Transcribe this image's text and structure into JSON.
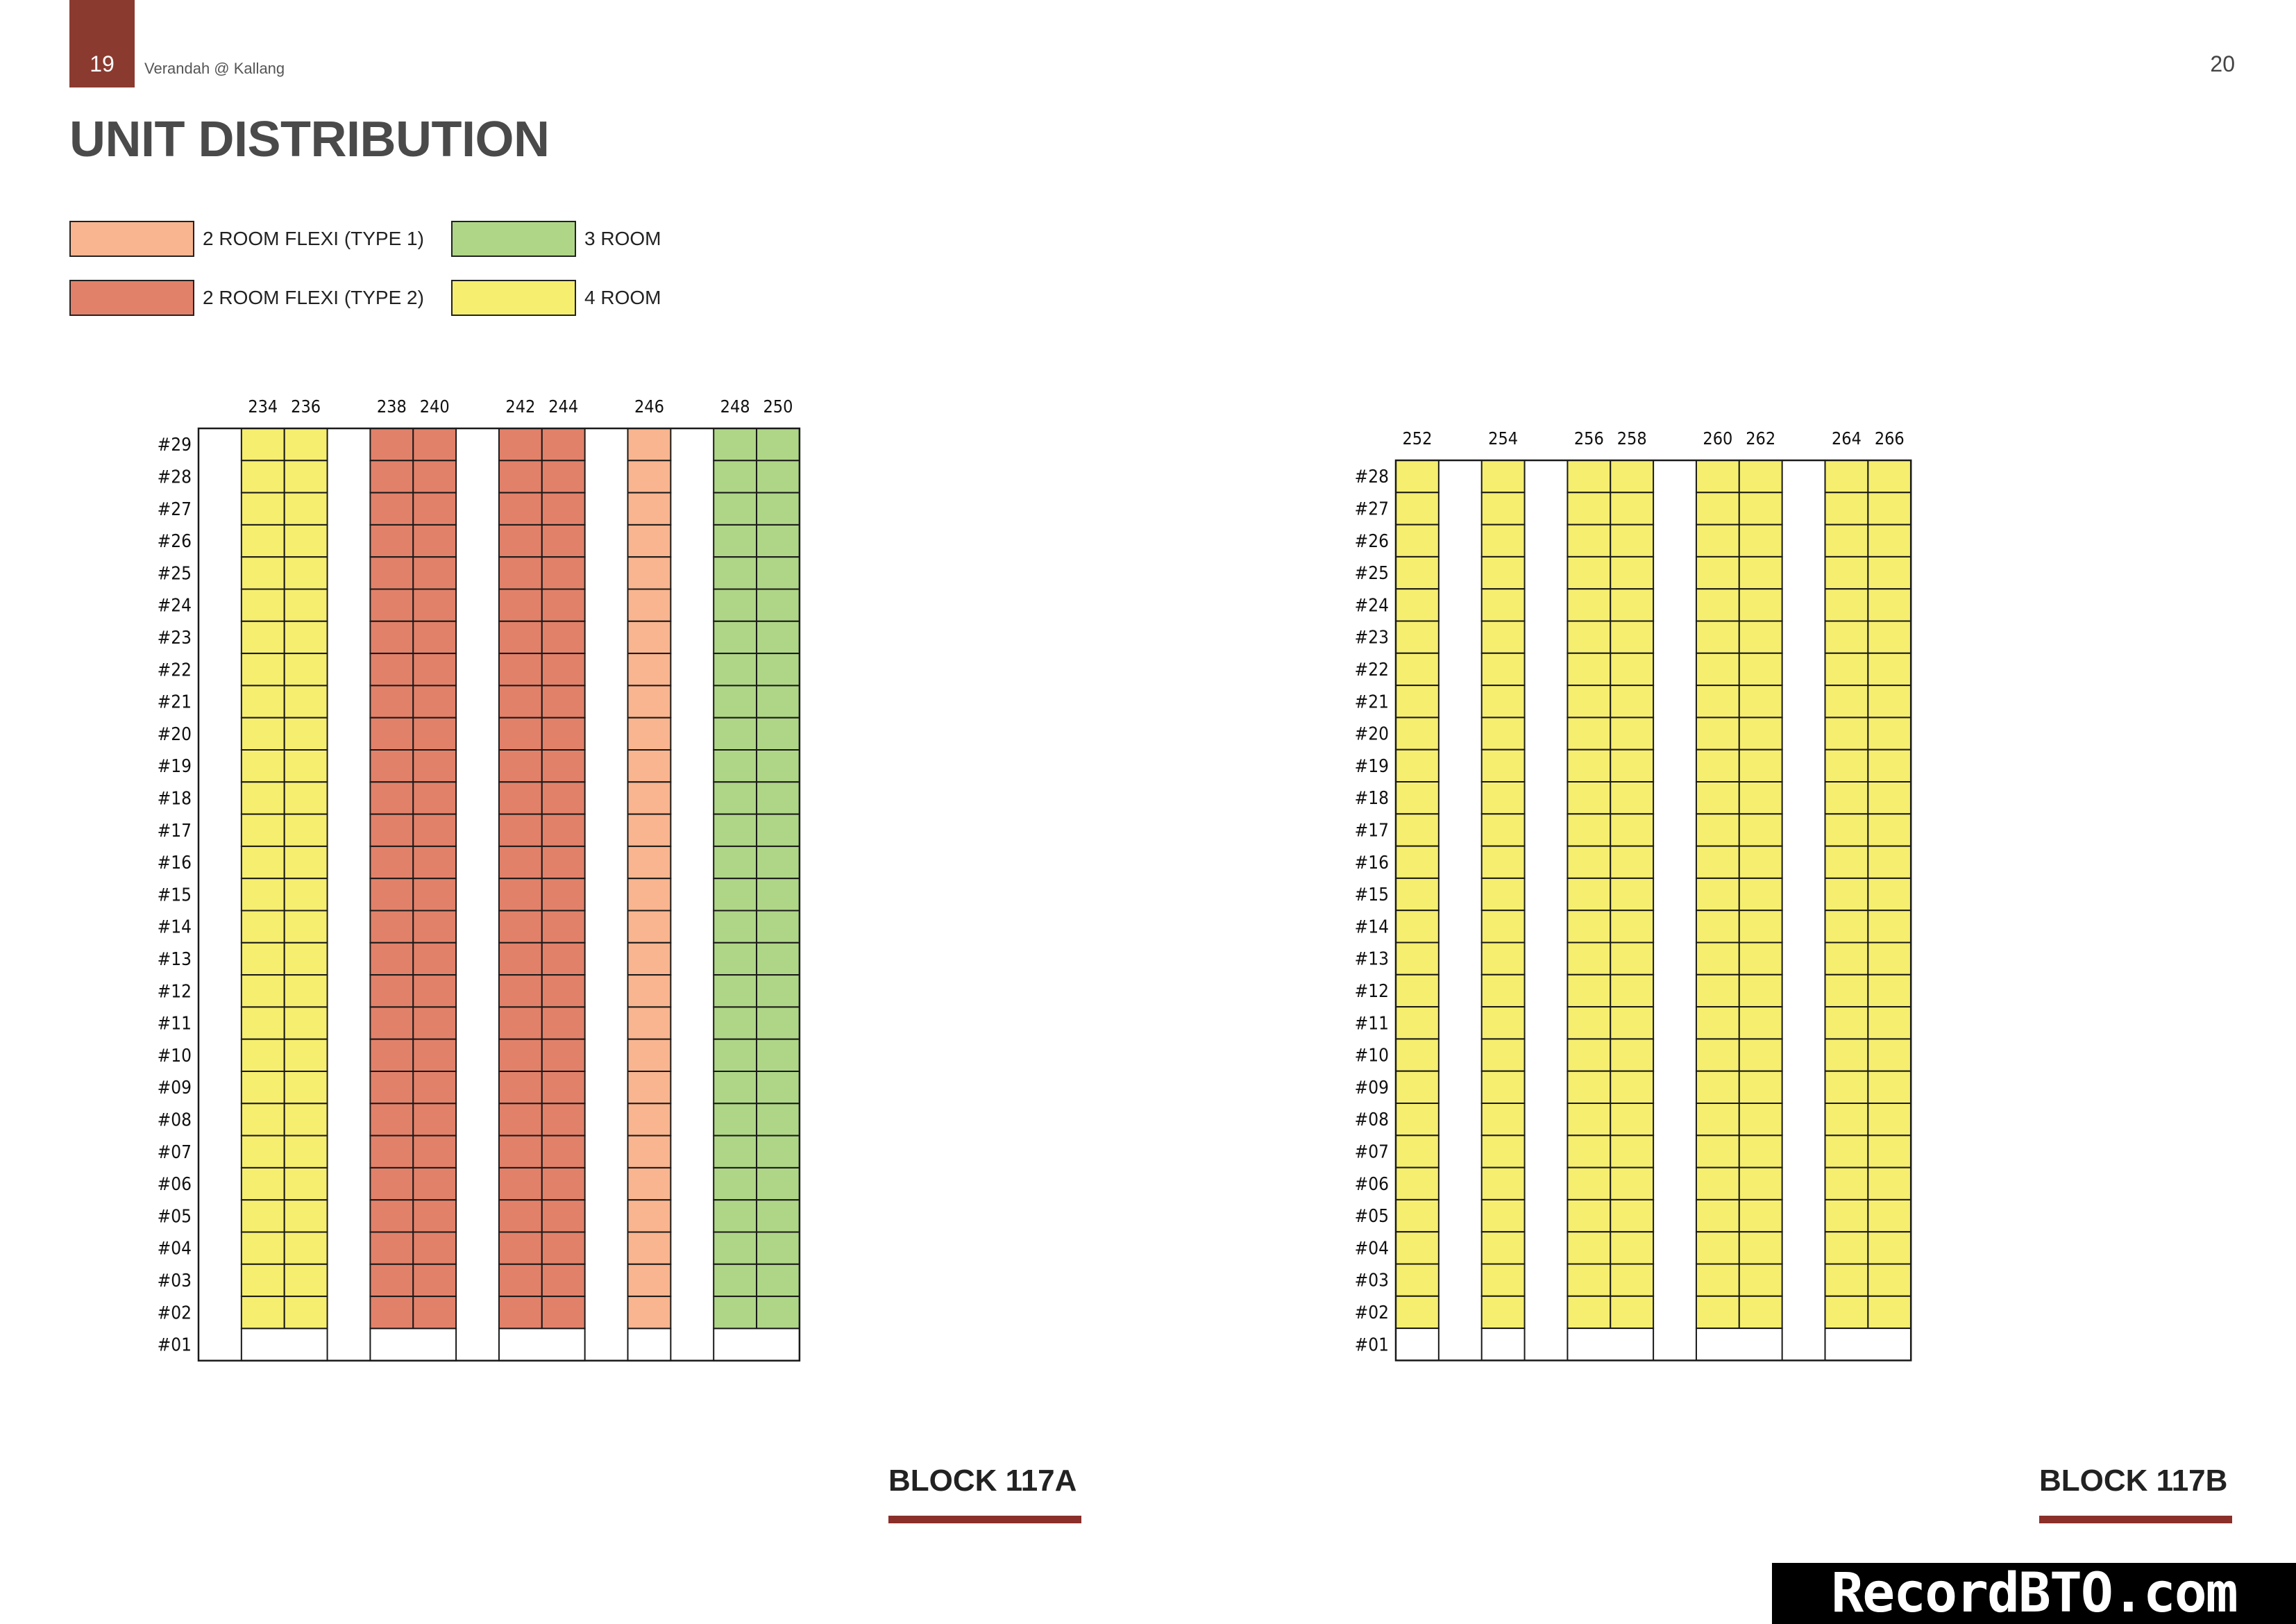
{
  "header": {
    "page_left": "19",
    "doc_title": "Verandah @ Kallang",
    "page_right": "20"
  },
  "heading": "UNIT DISTRIBUTION",
  "legend": [
    {
      "key": "flexi1",
      "label": "2 ROOM FLEXI (TYPE 1)",
      "color": "#F9B58F"
    },
    {
      "key": "room3",
      "label": "3 ROOM",
      "color": "#AFD687"
    },
    {
      "key": "flexi2",
      "label": "2 ROOM FLEXI (TYPE 2)",
      "color": "#E2816A"
    },
    {
      "key": "room4",
      "label": "4 ROOM",
      "color": "#F6EE6F"
    }
  ],
  "blocks": [
    {
      "name": "BLOCK 117A",
      "floors": [
        "#29",
        "#28",
        "#27",
        "#26",
        "#25",
        "#24",
        "#23",
        "#22",
        "#21",
        "#20",
        "#19",
        "#18",
        "#17",
        "#16",
        "#15",
        "#14",
        "#13",
        "#12",
        "#11",
        "#10",
        "#09",
        "#08",
        "#07",
        "#06",
        "#05",
        "#04",
        "#03",
        "#02",
        "#01"
      ],
      "units": [
        {
          "label": "",
          "type": "gap"
        },
        {
          "label": "234",
          "type": "room4"
        },
        {
          "label": "236",
          "type": "room4"
        },
        {
          "label": "",
          "type": "gap"
        },
        {
          "label": "238",
          "type": "flexi2"
        },
        {
          "label": "240",
          "type": "flexi2"
        },
        {
          "label": "",
          "type": "gap"
        },
        {
          "label": "242",
          "type": "flexi2"
        },
        {
          "label": "244",
          "type": "flexi2"
        },
        {
          "label": "",
          "type": "gap"
        },
        {
          "label": "246",
          "type": "flexi1"
        },
        {
          "label": "",
          "type": "gap"
        },
        {
          "label": "248",
          "type": "room3"
        },
        {
          "label": "250",
          "type": "room3"
        }
      ]
    },
    {
      "name": "BLOCK 117B",
      "floors": [
        "#28",
        "#27",
        "#26",
        "#25",
        "#24",
        "#23",
        "#22",
        "#21",
        "#20",
        "#19",
        "#18",
        "#17",
        "#16",
        "#15",
        "#14",
        "#13",
        "#12",
        "#11",
        "#10",
        "#09",
        "#08",
        "#07",
        "#06",
        "#05",
        "#04",
        "#03",
        "#02",
        "#01"
      ],
      "units": [
        {
          "label": "252",
          "type": "room4"
        },
        {
          "label": "",
          "type": "gap"
        },
        {
          "label": "254",
          "type": "room4"
        },
        {
          "label": "",
          "type": "gap"
        },
        {
          "label": "256",
          "type": "room4"
        },
        {
          "label": "258",
          "type": "room4"
        },
        {
          "label": "",
          "type": "gap"
        },
        {
          "label": "260",
          "type": "room4"
        },
        {
          "label": "262",
          "type": "room4"
        },
        {
          "label": "",
          "type": "gap"
        },
        {
          "label": "264",
          "type": "room4"
        },
        {
          "label": "266",
          "type": "room4"
        }
      ]
    }
  ],
  "watermark": "RecordBTO.com"
}
